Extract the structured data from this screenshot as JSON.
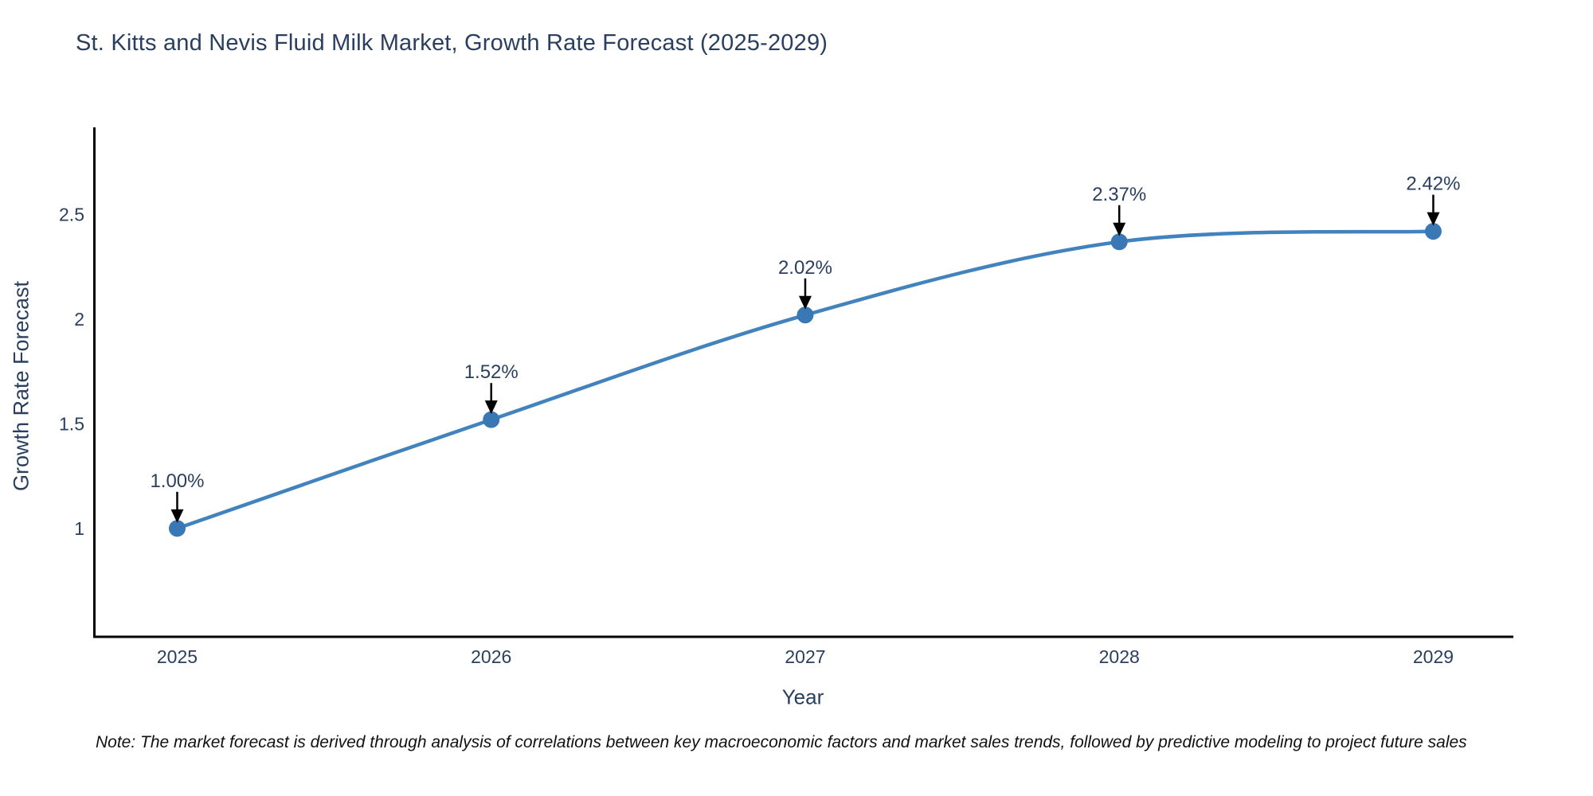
{
  "page": {
    "background": "#ffffff"
  },
  "chart_data": {
    "type": "line",
    "title": "St. Kitts and Nevis Fluid Milk Market, Growth Rate Forecast (2025-2029)",
    "xlabel": "Year",
    "ylabel": "Growth Rate Forecast",
    "categories": [
      "2025",
      "2026",
      "2027",
      "2028",
      "2029"
    ],
    "x": [
      2025,
      2026,
      2027,
      2028,
      2029
    ],
    "values": [
      1.0,
      1.52,
      2.02,
      2.37,
      2.42
    ],
    "point_labels": [
      "1.00%",
      "1.52%",
      "2.02%",
      "2.37%",
      "2.42%"
    ],
    "yticks": [
      1,
      1.5,
      2,
      2.5
    ],
    "ytick_labels": [
      "1",
      "1.5",
      "2",
      "2.5"
    ],
    "ylim": [
      0.482,
      2.917
    ],
    "xlim": [
      2024.735,
      2029.255
    ],
    "grid": false,
    "legend_position": "none",
    "line_shape": "spline",
    "colors": {
      "line": "#4383bd",
      "marker": "#3a78b5",
      "axis": "#000000",
      "tick_text": "#2a3f5f",
      "annotation_text": "#2a3f5f",
      "annotation_arrow": "#000000"
    }
  },
  "note": {
    "text": "Note: The market forecast is derived through analysis of correlations between key macroeconomic factors and market sales trends, followed by predictive modeling to project future sales"
  }
}
